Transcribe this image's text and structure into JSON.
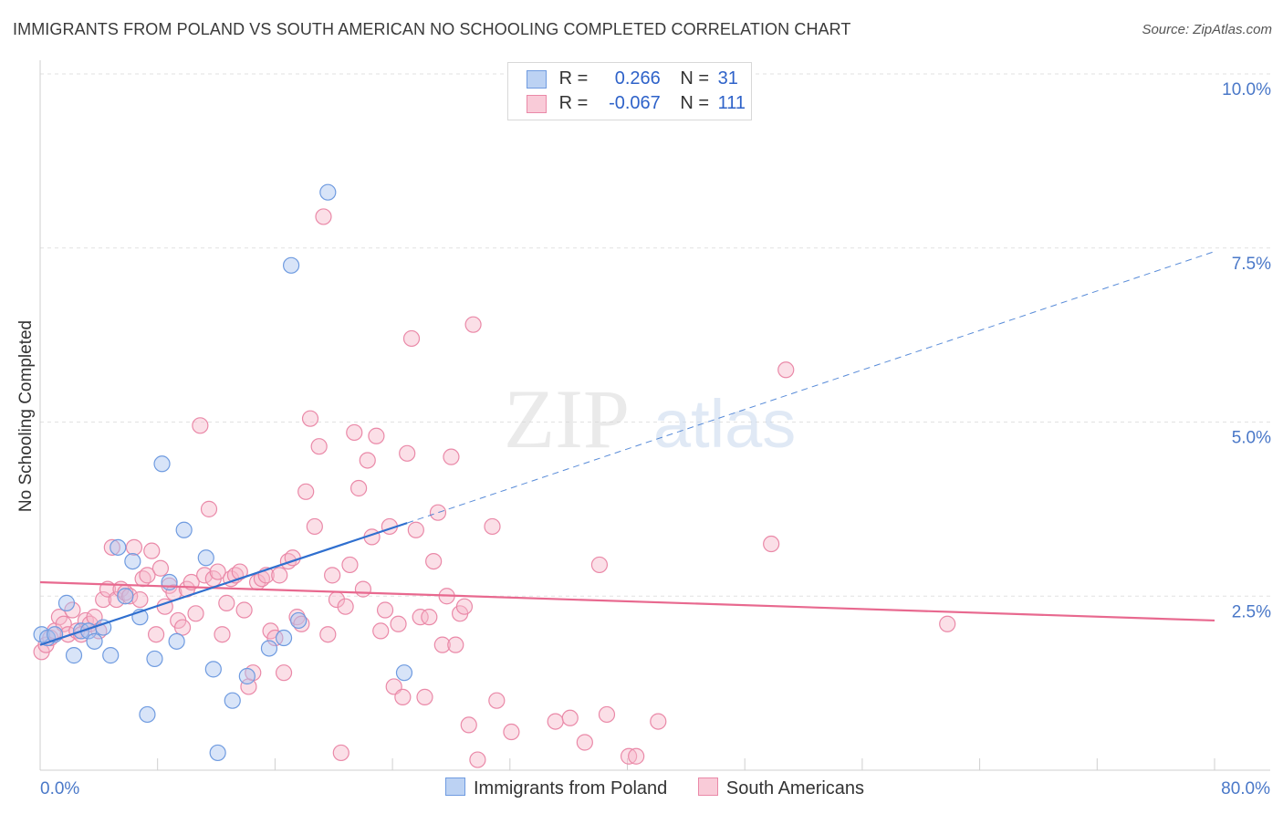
{
  "header": {
    "title": "IMMIGRANTS FROM POLAND VS SOUTH AMERICAN NO SCHOOLING COMPLETED CORRELATION CHART",
    "source": "Source: ZipAtlas.com"
  },
  "watermark": {
    "zip": "ZIP",
    "atlas": "atlas"
  },
  "legend_top": {
    "rows": [
      {
        "r_label": "R =",
        "r_value": "0.266",
        "n_label": "N =",
        "n_value": "31"
      },
      {
        "r_label": "R =",
        "r_value": "-0.067",
        "n_label": "N =",
        "n_value": "111"
      }
    ]
  },
  "legend_bottom": {
    "items": [
      {
        "label": "Immigrants from Poland"
      },
      {
        "label": "South Americans"
      }
    ]
  },
  "colors": {
    "blue_fill": "#a9c4ef",
    "blue_stroke": "#6f9be0",
    "blue_line": "#2f6fcf",
    "pink_fill": "#f6b8ca",
    "pink_stroke": "#ea89a8",
    "pink_line": "#e8698f",
    "grid": "#e2e2e2",
    "tick_text": "#4a78c8"
  },
  "chart_data": {
    "type": "scatter",
    "title": "IMMIGRANTS FROM POLAND VS SOUTH AMERICAN NO SCHOOLING COMPLETED CORRELATION CHART",
    "xlabel": "",
    "ylabel": "No Schooling Completed",
    "xlim": [
      0,
      80
    ],
    "ylim": [
      0,
      10
    ],
    "x_tick_labels": [
      "0.0%",
      "80.0%"
    ],
    "y_tick_labels": [
      "2.5%",
      "5.0%",
      "7.5%",
      "10.0%"
    ],
    "y_ticks": [
      2.5,
      5.0,
      7.5,
      10.0
    ],
    "grid": true,
    "legend_position": "top-center",
    "series": [
      {
        "name": "Immigrants from Poland",
        "color": "blue",
        "R": 0.266,
        "N": 31,
        "trend": {
          "x0": 0.0,
          "y0": 1.8,
          "x1": 25.0,
          "y1": 3.55,
          "dash_x1": 80.0,
          "dash_y1": 7.45
        },
        "points": [
          [
            0.1,
            1.95
          ],
          [
            0.5,
            1.9
          ],
          [
            1.0,
            1.95
          ],
          [
            1.8,
            2.4
          ],
          [
            2.3,
            1.65
          ],
          [
            2.8,
            2.0
          ],
          [
            3.3,
            2.0
          ],
          [
            3.7,
            1.85
          ],
          [
            4.3,
            2.05
          ],
          [
            4.8,
            1.65
          ],
          [
            5.3,
            3.2
          ],
          [
            5.8,
            2.5
          ],
          [
            6.3,
            3.0
          ],
          [
            6.8,
            2.2
          ],
          [
            7.3,
            0.8
          ],
          [
            7.8,
            1.6
          ],
          [
            8.3,
            4.4
          ],
          [
            8.8,
            2.7
          ],
          [
            9.3,
            1.85
          ],
          [
            9.8,
            3.45
          ],
          [
            11.3,
            3.05
          ],
          [
            11.8,
            1.45
          ],
          [
            12.1,
            0.25
          ],
          [
            13.1,
            1.0
          ],
          [
            14.1,
            1.35
          ],
          [
            15.6,
            1.75
          ],
          [
            16.6,
            1.9
          ],
          [
            17.1,
            7.25
          ],
          [
            17.6,
            2.15
          ],
          [
            19.6,
            8.3
          ],
          [
            24.8,
            1.4
          ]
        ]
      },
      {
        "name": "South Americans",
        "color": "pink",
        "R": -0.067,
        "N": 111,
        "trend": {
          "x0": 0.0,
          "y0": 2.7,
          "x1": 80.0,
          "y1": 2.15
        },
        "points": [
          [
            0.1,
            1.7
          ],
          [
            0.4,
            1.8
          ],
          [
            0.7,
            1.9
          ],
          [
            1.0,
            2.0
          ],
          [
            1.3,
            2.2
          ],
          [
            1.6,
            2.1
          ],
          [
            1.9,
            1.95
          ],
          [
            2.2,
            2.3
          ],
          [
            2.5,
            2.0
          ],
          [
            2.8,
            1.95
          ],
          [
            3.1,
            2.15
          ],
          [
            3.4,
            2.1
          ],
          [
            3.7,
            2.2
          ],
          [
            4.0,
            2.0
          ],
          [
            4.3,
            2.45
          ],
          [
            4.6,
            2.6
          ],
          [
            4.9,
            3.2
          ],
          [
            5.2,
            2.45
          ],
          [
            5.5,
            2.6
          ],
          [
            5.8,
            2.55
          ],
          [
            6.1,
            2.5
          ],
          [
            6.4,
            3.2
          ],
          [
            6.8,
            2.45
          ],
          [
            7.0,
            2.75
          ],
          [
            7.3,
            2.8
          ],
          [
            7.6,
            3.15
          ],
          [
            7.9,
            1.95
          ],
          [
            8.2,
            2.9
          ],
          [
            8.5,
            2.35
          ],
          [
            8.8,
            2.65
          ],
          [
            9.1,
            2.55
          ],
          [
            9.4,
            2.15
          ],
          [
            9.7,
            2.05
          ],
          [
            10.0,
            2.6
          ],
          [
            10.3,
            2.7
          ],
          [
            10.6,
            2.25
          ],
          [
            10.9,
            4.95
          ],
          [
            11.2,
            2.8
          ],
          [
            11.5,
            3.75
          ],
          [
            11.8,
            2.75
          ],
          [
            12.1,
            2.85
          ],
          [
            12.4,
            1.95
          ],
          [
            12.7,
            2.4
          ],
          [
            13.0,
            2.75
          ],
          [
            13.3,
            2.8
          ],
          [
            13.6,
            2.85
          ],
          [
            13.9,
            2.3
          ],
          [
            14.2,
            1.2
          ],
          [
            14.5,
            1.4
          ],
          [
            14.8,
            2.7
          ],
          [
            15.1,
            2.75
          ],
          [
            15.4,
            2.8
          ],
          [
            15.7,
            2.0
          ],
          [
            16.0,
            1.9
          ],
          [
            16.3,
            2.8
          ],
          [
            16.6,
            1.4
          ],
          [
            16.9,
            3.0
          ],
          [
            17.2,
            3.05
          ],
          [
            17.5,
            2.2
          ],
          [
            17.8,
            2.1
          ],
          [
            18.1,
            4.0
          ],
          [
            18.4,
            5.05
          ],
          [
            18.7,
            3.5
          ],
          [
            19.0,
            4.65
          ],
          [
            19.3,
            7.95
          ],
          [
            19.6,
            1.95
          ],
          [
            19.9,
            2.8
          ],
          [
            20.2,
            2.45
          ],
          [
            20.5,
            0.25
          ],
          [
            20.8,
            2.35
          ],
          [
            21.1,
            2.95
          ],
          [
            21.4,
            4.85
          ],
          [
            21.7,
            4.05
          ],
          [
            22.0,
            2.6
          ],
          [
            22.3,
            4.45
          ],
          [
            22.6,
            3.35
          ],
          [
            22.9,
            4.8
          ],
          [
            23.2,
            2.0
          ],
          [
            23.5,
            2.3
          ],
          [
            23.8,
            3.5
          ],
          [
            24.1,
            1.2
          ],
          [
            24.4,
            2.1
          ],
          [
            24.7,
            1.05
          ],
          [
            25.0,
            4.55
          ],
          [
            25.3,
            6.2
          ],
          [
            25.6,
            3.45
          ],
          [
            25.9,
            2.2
          ],
          [
            26.2,
            1.05
          ],
          [
            26.5,
            2.2
          ],
          [
            26.8,
            3.0
          ],
          [
            27.1,
            3.7
          ],
          [
            27.4,
            1.8
          ],
          [
            27.7,
            2.5
          ],
          [
            28.0,
            4.5
          ],
          [
            28.3,
            1.8
          ],
          [
            28.6,
            2.25
          ],
          [
            28.9,
            2.35
          ],
          [
            29.2,
            0.65
          ],
          [
            29.5,
            6.4
          ],
          [
            29.8,
            0.15
          ],
          [
            30.8,
            3.5
          ],
          [
            31.1,
            1.0
          ],
          [
            32.1,
            0.55
          ],
          [
            35.1,
            0.7
          ],
          [
            36.1,
            0.75
          ],
          [
            37.1,
            0.4
          ],
          [
            38.1,
            2.95
          ],
          [
            38.6,
            0.8
          ],
          [
            40.1,
            0.2
          ],
          [
            40.6,
            0.2
          ],
          [
            42.1,
            0.7
          ],
          [
            49.8,
            3.25
          ],
          [
            50.8,
            5.75
          ],
          [
            61.8,
            2.1
          ]
        ]
      }
    ]
  }
}
